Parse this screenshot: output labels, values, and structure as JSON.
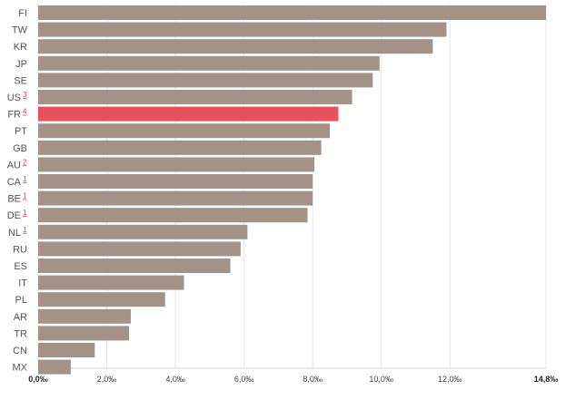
{
  "chart_data": {
    "type": "bar",
    "orientation": "horizontal",
    "categories": [
      "FI",
      "TW",
      "KR",
      "JP",
      "SE",
      "US",
      "FR",
      "PT",
      "GB",
      "AU",
      "CA",
      "BE",
      "DE",
      "NL",
      "RU",
      "ES",
      "IT",
      "PL",
      "AR",
      "TR",
      "CN",
      "MX"
    ],
    "footnotes": [
      "",
      "",
      "",
      "",
      "",
      "3",
      "4",
      "",
      "",
      "2",
      "1",
      "1",
      "1",
      "1",
      "",
      "",
      "",
      "",
      "",
      "",
      "",
      ""
    ],
    "values": [
      14.8,
      11.9,
      11.5,
      9.95,
      9.75,
      9.15,
      8.75,
      8.5,
      8.25,
      8.05,
      8.0,
      8.0,
      7.85,
      6.1,
      5.9,
      5.6,
      4.25,
      3.7,
      2.7,
      2.65,
      1.65,
      0.95
    ],
    "highlight": "FR",
    "xlim": [
      0,
      14.8
    ],
    "xticks": [
      0,
      2,
      4,
      6,
      8,
      10,
      12,
      14.8
    ],
    "xtick_labels": [
      "0,0‰",
      "2,0‰",
      "4,0‰",
      "6,0‰",
      "8,0‰",
      "10,0‰",
      "12,0‰",
      "14,8‰"
    ],
    "grid": "vertical",
    "colors": {
      "bar": "#a39287",
      "highlight": "#e8505b",
      "grid": "#e6e6e6",
      "footnote": "#e0384f"
    }
  }
}
